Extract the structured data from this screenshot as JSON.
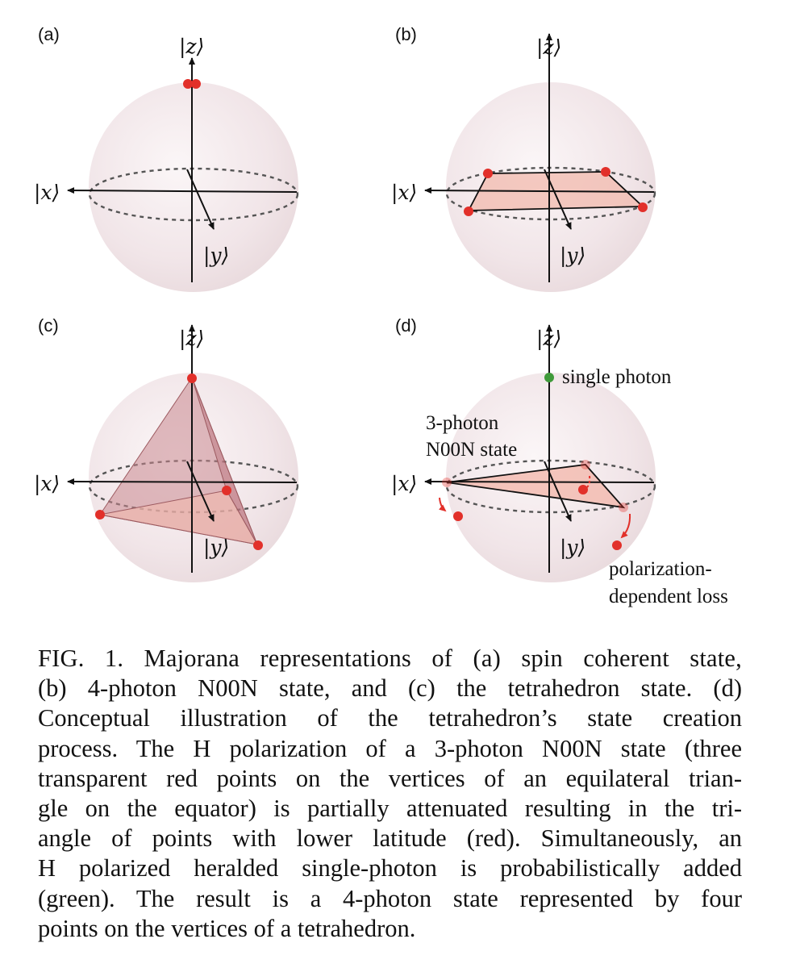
{
  "figure": {
    "panels": [
      {
        "id": "a",
        "label": "(a)",
        "axes": {
          "z": "|z⟩",
          "x": "|x⟩",
          "y": "|y⟩"
        }
      },
      {
        "id": "b",
        "label": "(b)",
        "axes": {
          "z": "|z⟩",
          "x": "|x⟩",
          "y": "|y⟩"
        }
      },
      {
        "id": "c",
        "label": "(c)",
        "axes": {
          "z": "|z⟩",
          "x": "|x⟩",
          "y": "|y⟩"
        }
      },
      {
        "id": "d",
        "label": "(d)",
        "axes": {
          "z": "|z⟩",
          "x": "|x⟩",
          "y": "|y⟩"
        },
        "annotations": {
          "single_photon": "single photon",
          "noon_line1": "3-photon",
          "noon_line2": "N00N state",
          "loss_line1": "polarization-",
          "loss_line2": "dependent loss"
        }
      }
    ],
    "colors": {
      "point_red": "#e2302a",
      "point_green": "#3f9a3a",
      "sphere": "#f3e6ea",
      "plane": "#f2b9ae"
    }
  },
  "caption": {
    "lines": [
      "FIG. 1.   Majorana representations of (a) spin coherent state,",
      "(b) 4-photon N00N state, and (c) the tetrahedron state. (d)",
      "Conceptual illustration of the tetrahedron’s state creation",
      "process. The H polarization of a 3-photon N00N state (three",
      "transparent red points on the vertices of an equilateral trian-",
      "gle on the equator) is partially attenuated resulting in the tri-",
      "angle of points with lower latitude (red). Simultaneously, an",
      "H polarized heralded single-photon is probabilistically added",
      "(green).  The result is a 4-photon state represented by four",
      "points on the vertices of a tetrahedron."
    ]
  }
}
